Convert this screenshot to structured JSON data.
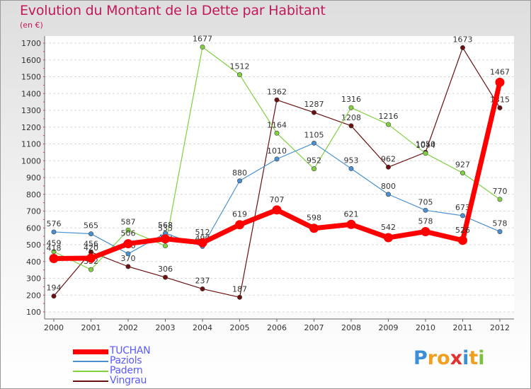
{
  "chart_data": {
    "type": "line",
    "title": "Evolution du Montant de la Dette par Habitant",
    "subtitle": "(en €)",
    "x": [
      "2000",
      "2001",
      "2002",
      "2003",
      "2004",
      "2005",
      "2006",
      "2007",
      "2008",
      "2009",
      "2010",
      "2011",
      "2012"
    ],
    "ylim": [
      100,
      1700
    ],
    "yticks": [
      "100",
      "200",
      "300",
      "400",
      "500",
      "600",
      "700",
      "800",
      "900",
      "1000",
      "1100",
      "1200",
      "1300",
      "1400",
      "1500",
      "1600",
      "1700"
    ],
    "grid": "horizontal-dashed",
    "legend_position": "bottom-left",
    "series": [
      {
        "name": "Vingrau",
        "color": "#6b1010",
        "values": [
          194,
          456,
          370,
          306,
          237,
          187,
          1362,
          1287,
          1208,
          962,
          1050,
          1673,
          1315
        ]
      },
      {
        "name": "Padern",
        "color": "#80d040",
        "values": [
          459,
          352,
          587,
          493,
          1677,
          1512,
          1164,
          952,
          1316,
          1216,
          1044,
          927,
          770
        ]
      },
      {
        "name": "Paziols",
        "color": "#4a90d0",
        "values": [
          576,
          565,
          446,
          568,
          490,
          880,
          1010,
          1105,
          953,
          800,
          705,
          673,
          578
        ]
      },
      {
        "name": "TUCHAN",
        "color": "#ff0000",
        "values": [
          418,
          420,
          506,
          535,
          512,
          619,
          707,
          598,
          621,
          542,
          578,
          526,
          1467
        ]
      }
    ]
  },
  "legend": {
    "items": [
      {
        "label": "TUCHAN",
        "color": "#ff0000"
      },
      {
        "label": "Paziols",
        "color": "#4a90d0"
      },
      {
        "label": "Padern",
        "color": "#80d040"
      },
      {
        "label": "Vingrau",
        "color": "#6b1010"
      }
    ]
  },
  "logo": {
    "letters": [
      {
        "ch": "P",
        "color": "#3a8fd8"
      },
      {
        "ch": "r",
        "color": "#f0a020"
      },
      {
        "ch": "o",
        "color": "#f0a020"
      },
      {
        "ch": "x",
        "color": "#e53030"
      },
      {
        "ch": "i",
        "color": "#3a8fd8"
      },
      {
        "ch": "t",
        "color": "#f0a020"
      },
      {
        "ch": "i",
        "color": "#80c040"
      }
    ]
  }
}
